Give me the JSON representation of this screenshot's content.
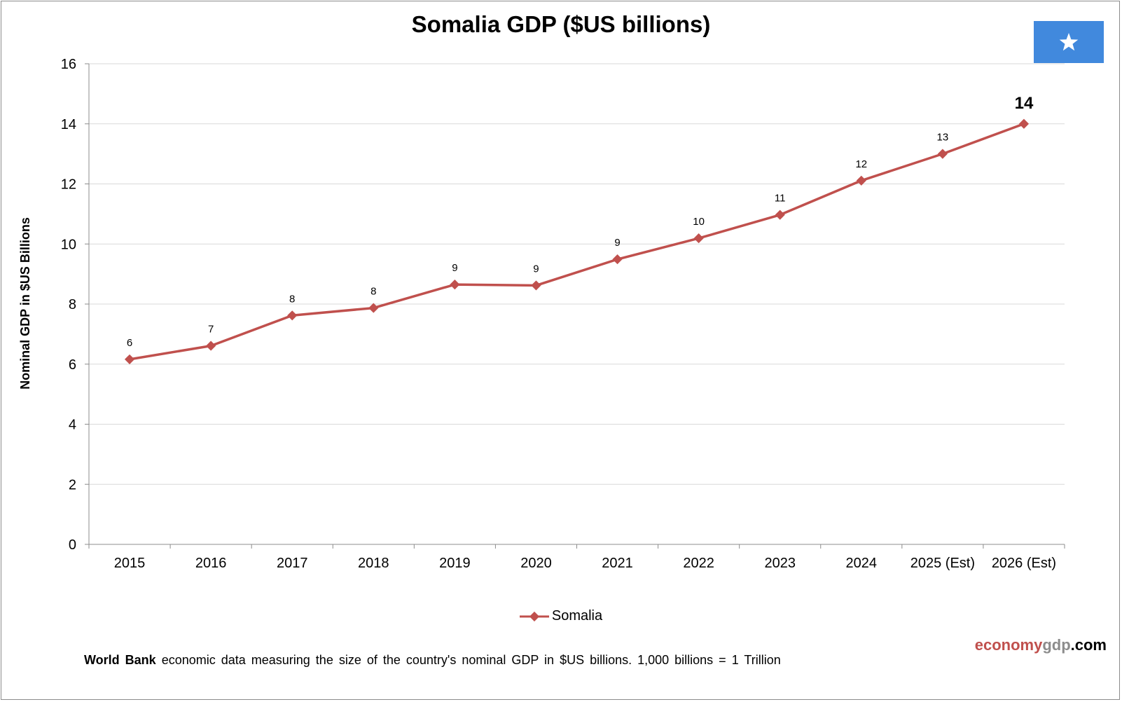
{
  "chart_data": {
    "type": "line",
    "title": "Somalia GDP ($US billions)",
    "ylabel": "Nominal GDP in $US Billions",
    "xlabel": "",
    "ylim": [
      0,
      16
    ],
    "yticks": [
      "0",
      "2",
      "4",
      "6",
      "8",
      "10",
      "12",
      "14",
      "16"
    ],
    "categories": [
      "2015",
      "2016",
      "2017",
      "2018",
      "2019",
      "2020",
      "2021",
      "2022",
      "2023",
      "2024",
      "2025 (Est)",
      "2026 (Est)"
    ],
    "series": [
      {
        "name": "Somalia",
        "color": "#c0504d",
        "values": [
          6.16,
          6.61,
          7.62,
          7.87,
          8.65,
          8.62,
          9.49,
          10.19,
          10.97,
          12.11,
          13.0,
          14.0
        ],
        "labels": [
          "6",
          "7",
          "8",
          "8",
          "9",
          "9",
          "9",
          "10",
          "11",
          "12",
          "13",
          "14"
        ]
      }
    ],
    "grid": true,
    "legend": "bottom-center"
  },
  "flag": {
    "name": "somalia-flag",
    "color": "#4189dd",
    "star_color": "#ffffff"
  },
  "branding": {
    "part1": "economy",
    "part2": "gdp",
    "part3": ".com"
  },
  "footnote": {
    "source": "World Bank",
    "text": " economic data  measuring  the size of the country's nominal  GDP in $US billions.  1,000 billions = 1 Trillion"
  }
}
